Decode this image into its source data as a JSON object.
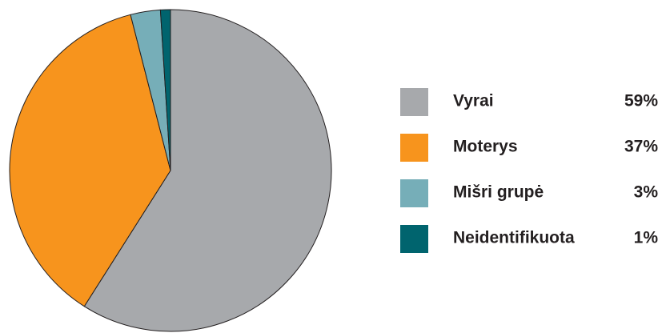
{
  "chart_data": {
    "type": "pie",
    "categories": [
      "Vyrai",
      "Moterys",
      "Mišri grupė",
      "Neidentifikuota"
    ],
    "values": [
      59,
      37,
      3,
      1
    ],
    "value_labels": [
      "59%",
      "37%",
      "3%",
      "1%"
    ],
    "colors": [
      "#a7a9ac",
      "#f7941d",
      "#76aeb8",
      "#00646e"
    ],
    "legend": "right"
  }
}
